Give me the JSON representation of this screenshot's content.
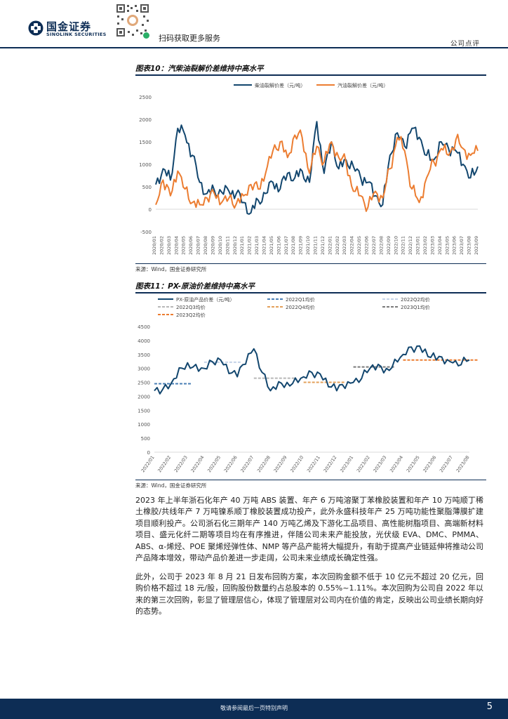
{
  "header": {
    "logo_cn": "国金证券",
    "logo_en": "SINOLINK SECURITIES",
    "scan_text": "扫码获取更多服务",
    "page_type": "公司点评"
  },
  "figure10": {
    "title": "图表10：汽柴油裂解价差维持中高水平",
    "source": "来源：Wind，国金证券研究所"
  },
  "figure11": {
    "title": "图表11：PX-原油价差维持中高水平",
    "source": "来源：Wind，国金证券研究所"
  },
  "chart_data": [
    {
      "type": "line",
      "title": "汽柴油裂解价差维持中高水平",
      "ylim": [
        -500,
        2500
      ],
      "yticks": [
        -500,
        0,
        500,
        1000,
        1500,
        2000,
        2500
      ],
      "categories": [
        "2020/01",
        "2020/02",
        "2020/03",
        "2020/04",
        "2020/05",
        "2020/06",
        "2020/07",
        "2020/08",
        "2020/09",
        "2020/10",
        "2020/11",
        "2020/12",
        "2021/01",
        "2021/02",
        "2021/03",
        "2021/04",
        "2021/05",
        "2021/06",
        "2021/07",
        "2021/08",
        "2021/09",
        "2021/10",
        "2021/11",
        "2021/12",
        "2022/01",
        "2022/02",
        "2022/03",
        "2022/04",
        "2022/05",
        "2022/06",
        "2022/07",
        "2022/08",
        "2022/09",
        "2022/10",
        "2022/11",
        "2022/12",
        "2023/01",
        "2023/02",
        "2023/03",
        "2023/04",
        "2023/05",
        "2023/06",
        "2023/07",
        "2023/08",
        "2023/09"
      ],
      "series": [
        {
          "name": "柴油裂解价差（元/吨）",
          "color": "#12466e",
          "values": [
            550,
            900,
            650,
            1800,
            1650,
            1200,
            600,
            350,
            420,
            380,
            400,
            350,
            150,
            -80,
            200,
            350,
            600,
            450,
            800,
            700,
            850,
            600,
            1950,
            800,
            1500,
            900,
            1100,
            950,
            700,
            600,
            300,
            100,
            1200,
            1700,
            1400,
            1800,
            1600,
            1200,
            1100,
            1500,
            1350,
            1300,
            1000,
            700,
            950
          ]
        },
        {
          "name": "汽油裂解价差（元/吨）",
          "color": "#ec7d31",
          "values": [
            100,
            650,
            300,
            850,
            450,
            150,
            100,
            250,
            350,
            150,
            250,
            120,
            300,
            550,
            450,
            800,
            1300,
            1500,
            1150,
            1650,
            1600,
            800,
            1400,
            1050,
            1500,
            1150,
            1050,
            400,
            300,
            50,
            400,
            250,
            900,
            1600,
            1300,
            450,
            150,
            700,
            1050,
            1350,
            1200,
            1550,
            1350,
            1200,
            1300
          ]
        }
      ]
    },
    {
      "type": "line",
      "title": "PX-原油价差维持中高水平",
      "ylim": [
        0,
        4500
      ],
      "yticks": [
        0,
        500,
        1000,
        1500,
        2000,
        2500,
        3000,
        3500,
        4000,
        4500
      ],
      "categories": [
        "2022/01",
        "2022/02",
        "2022/03",
        "2022/04",
        "2022/05",
        "2022/06",
        "2022/07",
        "2022/08",
        "2022/09",
        "2022/10",
        "2022/11",
        "2022/12",
        "2023/01",
        "2023/02",
        "2023/03",
        "2023/04",
        "2023/05",
        "2023/06",
        "2023/07",
        "2023/08"
      ],
      "series": [
        {
          "name": "PX-原油产品价差（元/吨）",
          "color": "#12466e",
          "values": [
            2200,
            2450,
            3200,
            3000,
            3300,
            2700,
            3700,
            2200,
            2500,
            2700,
            2800,
            2200,
            2500,
            3000,
            3000,
            3500,
            3800,
            3300,
            3200,
            3300
          ]
        }
      ],
      "references": [
        {
          "name": "2022Q1均价",
          "color": "#4a7fb5",
          "value": 2450,
          "from": 0,
          "to": 2.2
        },
        {
          "name": "2022Q2均价",
          "color": "#c5d3e8",
          "value": 3220,
          "from": 3,
          "to": 5.2
        },
        {
          "name": "2022Q3均价",
          "color": "#b8b8b8",
          "value": 2650,
          "from": 6,
          "to": 8.5
        },
        {
          "name": "2022Q4均价",
          "color": "#e3a05a",
          "value": 2500,
          "from": 9,
          "to": 11.5
        },
        {
          "name": "2023Q1均价",
          "color": "#7a7a7a",
          "value": 3050,
          "from": 12,
          "to": 14.5
        },
        {
          "name": "2023Q2均价",
          "color": "#ec7d31",
          "value": 3300,
          "from": 15,
          "to": 19.5
        }
      ]
    }
  ],
  "paragraph1": "2023 年上半年浙石化年产 40 万吨 ABS 装置、年产 6 万吨溶聚丁苯橡胶装置和年产 10 万吨顺丁稀土橡胶/共线年产 7 万吨镍系顺丁橡胶装置成功投产，此外永盛科技年产 25 万吨功能性聚脂薄膜扩建项目顺利投产。公司浙石化三期年产 140 万吨乙烯及下游化工品项目、高性能树脂项目、高端新材料项目、盛元化纤二期等项目均在有序推进，伴随公司未来产能投放，光伏级 EVA、DMC、PMMA、ABS、α-烯烃、POE 聚烯烃弹性体、NMP 等产品产能将大幅提升，有助于提高产业链延伸将推动公司产品降本增效，带动产品价差进一步走阔，公司未来业绩成长确定性强。",
  "paragraph2": "此外，公司于 2023 年 8 月 21 日发布回购方案，本次回购金额不低于 10 亿元不超过 20 亿元，回购价格不超过 18 元/股，回购股份数量约占总股本的 0.55%~1.11%。本次回购为公司自 2022 年以来的第三次回购，彰显了管理层信心，体现了管理层对公司内在价值的肯定，反映出公司业绩长期向好的态势。",
  "footer": {
    "disclaimer": "敬请参阅最后一页特别声明",
    "page_number": "5"
  }
}
